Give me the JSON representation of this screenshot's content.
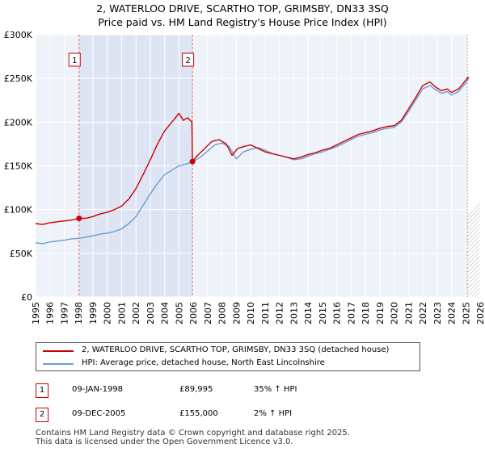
{
  "chart_data": {
    "type": "line",
    "title": "2, WATERLOO DRIVE, SCARTHO TOP, GRIMSBY, DN33 3SQ",
    "subtitle": "Price paid vs. HM Land Registry's House Price Index (HPI)",
    "xlabel": "",
    "ylabel": "",
    "xlim": [
      1995,
      2026
    ],
    "ylim": [
      0,
      300000
    ],
    "y_ticks": [
      0,
      50000,
      100000,
      150000,
      200000,
      250000,
      300000
    ],
    "y_tick_labels": [
      "£0",
      "£50K",
      "£100K",
      "£150K",
      "£200K",
      "£250K",
      "£300K"
    ],
    "x_ticks": [
      1995,
      1996,
      1997,
      1998,
      1999,
      2000,
      2001,
      2002,
      2003,
      2004,
      2005,
      2006,
      2007,
      2008,
      2009,
      2010,
      2011,
      2012,
      2013,
      2014,
      2015,
      2016,
      2017,
      2018,
      2019,
      2020,
      2021,
      2022,
      2023,
      2024,
      2025,
      2026
    ],
    "x_tick_labels": [
      "1995",
      "1996",
      "1997",
      "1998",
      "1999",
      "2000",
      "2001",
      "2002",
      "2003",
      "2004",
      "2005",
      "2006",
      "2007",
      "2008",
      "2009",
      "2010",
      "2011",
      "2012",
      "2013",
      "2014",
      "2015",
      "2016",
      "2017",
      "2018",
      "2019",
      "2020",
      "2021",
      "2022",
      "2023",
      "2024",
      "2025",
      "2026"
    ],
    "grid": true,
    "ownership_span": [
      1998.03,
      2005.94
    ],
    "forecast_start": 2025.1,
    "series": [
      {
        "name": "2, WATERLOO DRIVE, SCARTHO TOP, GRIMSBY, DN33 3SQ (detached house)",
        "color": "#cc0000",
        "x": [
          1995.0,
          1995.5,
          1996.0,
          1996.5,
          1997.0,
          1997.5,
          1998.03,
          1998.5,
          1999.0,
          1999.5,
          2000.0,
          2000.5,
          2001.0,
          2001.5,
          2002.0,
          2002.5,
          2003.0,
          2003.5,
          2004.0,
          2004.5,
          2005.0,
          2005.3,
          2005.6,
          2005.9,
          2005.94,
          2006.3,
          2006.8,
          2007.3,
          2007.8,
          2008.3,
          2008.7,
          2009.1,
          2009.5,
          2010.0,
          2010.5,
          2011.0,
          2011.5,
          2012.0,
          2012.5,
          2013.0,
          2013.5,
          2014.0,
          2014.5,
          2015.0,
          2015.5,
          2016.0,
          2016.5,
          2017.0,
          2017.5,
          2018.0,
          2018.5,
          2019.0,
          2019.5,
          2020.0,
          2020.5,
          2021.0,
          2021.5,
          2022.0,
          2022.5,
          2022.9,
          2023.3,
          2023.7,
          2024.0,
          2024.5,
          2025.0,
          2025.2
        ],
        "values": [
          84000,
          83000,
          85000,
          86000,
          87000,
          88000,
          89995,
          90000,
          92000,
          95000,
          97000,
          100000,
          104000,
          112000,
          124000,
          140000,
          157000,
          175000,
          190000,
          200000,
          210000,
          202000,
          205000,
          200000,
          155000,
          162000,
          170000,
          178000,
          180000,
          175000,
          162000,
          170000,
          172000,
          174000,
          170000,
          166000,
          164000,
          162000,
          160000,
          158000,
          160000,
          163000,
          165000,
          168000,
          170000,
          174000,
          178000,
          182000,
          186000,
          188000,
          190000,
          193000,
          195000,
          196000,
          202000,
          215000,
          228000,
          242000,
          246000,
          240000,
          236000,
          238000,
          234000,
          238000,
          248000,
          252000
        ]
      },
      {
        "name": "HPI: Average price, detached house, North East Lincolnshire",
        "color": "#6b9bd2",
        "x": [
          1995.0,
          1995.5,
          1996.0,
          1996.5,
          1997.0,
          1997.5,
          1998.0,
          1998.5,
          1999.0,
          1999.5,
          2000.0,
          2000.5,
          2001.0,
          2001.5,
          2002.0,
          2002.5,
          2003.0,
          2003.5,
          2004.0,
          2004.5,
          2005.0,
          2005.5,
          2006.0,
          2006.5,
          2007.0,
          2007.5,
          2008.0,
          2008.5,
          2009.0,
          2009.5,
          2010.0,
          2010.5,
          2011.0,
          2011.5,
          2012.0,
          2012.5,
          2013.0,
          2013.5,
          2014.0,
          2014.5,
          2015.0,
          2015.5,
          2016.0,
          2016.5,
          2017.0,
          2017.5,
          2018.0,
          2018.5,
          2019.0,
          2019.5,
          2020.0,
          2020.5,
          2021.0,
          2021.5,
          2022.0,
          2022.5,
          2022.9,
          2023.3,
          2023.7,
          2024.0,
          2024.5,
          2025.0,
          2025.2
        ],
        "values": [
          62000,
          61000,
          63000,
          64000,
          65000,
          66500,
          67000,
          68500,
          70000,
          72000,
          73000,
          75000,
          78000,
          84000,
          92000,
          105000,
          118000,
          130000,
          140000,
          145000,
          150000,
          152000,
          155000,
          160000,
          167000,
          174000,
          176000,
          172000,
          158000,
          166000,
          169000,
          171000,
          168000,
          164000,
          162000,
          160000,
          157000,
          158000,
          161000,
          164000,
          166000,
          169000,
          172000,
          176000,
          180000,
          184000,
          186000,
          188000,
          191000,
          193000,
          194000,
          200000,
          212000,
          225000,
          238000,
          242000,
          237000,
          233000,
          235000,
          231000,
          235000,
          245000,
          250000
        ]
      }
    ],
    "markers": [
      {
        "label": "1",
        "x": 1998.03,
        "y": 89995
      },
      {
        "label": "2",
        "x": 2005.94,
        "y": 155000
      }
    ]
  },
  "legend": {
    "property_label": "2, WATERLOO DRIVE, SCARTHO TOP, GRIMSBY, DN33 3SQ (detached house)",
    "hpi_label": "HPI: Average price, detached house, North East Lincolnshire"
  },
  "transactions": [
    {
      "badge": "1",
      "date": "09-JAN-1998",
      "price": "£89,995",
      "hpi": "35% ↑ HPI"
    },
    {
      "badge": "2",
      "date": "09-DEC-2005",
      "price": "£155,000",
      "hpi": "2% ↑ HPI"
    }
  ],
  "footer": {
    "line1": "Contains HM Land Registry data © Crown copyright and database right 2025.",
    "line2": "This data is licensed under the Open Government Licence v3.0."
  }
}
